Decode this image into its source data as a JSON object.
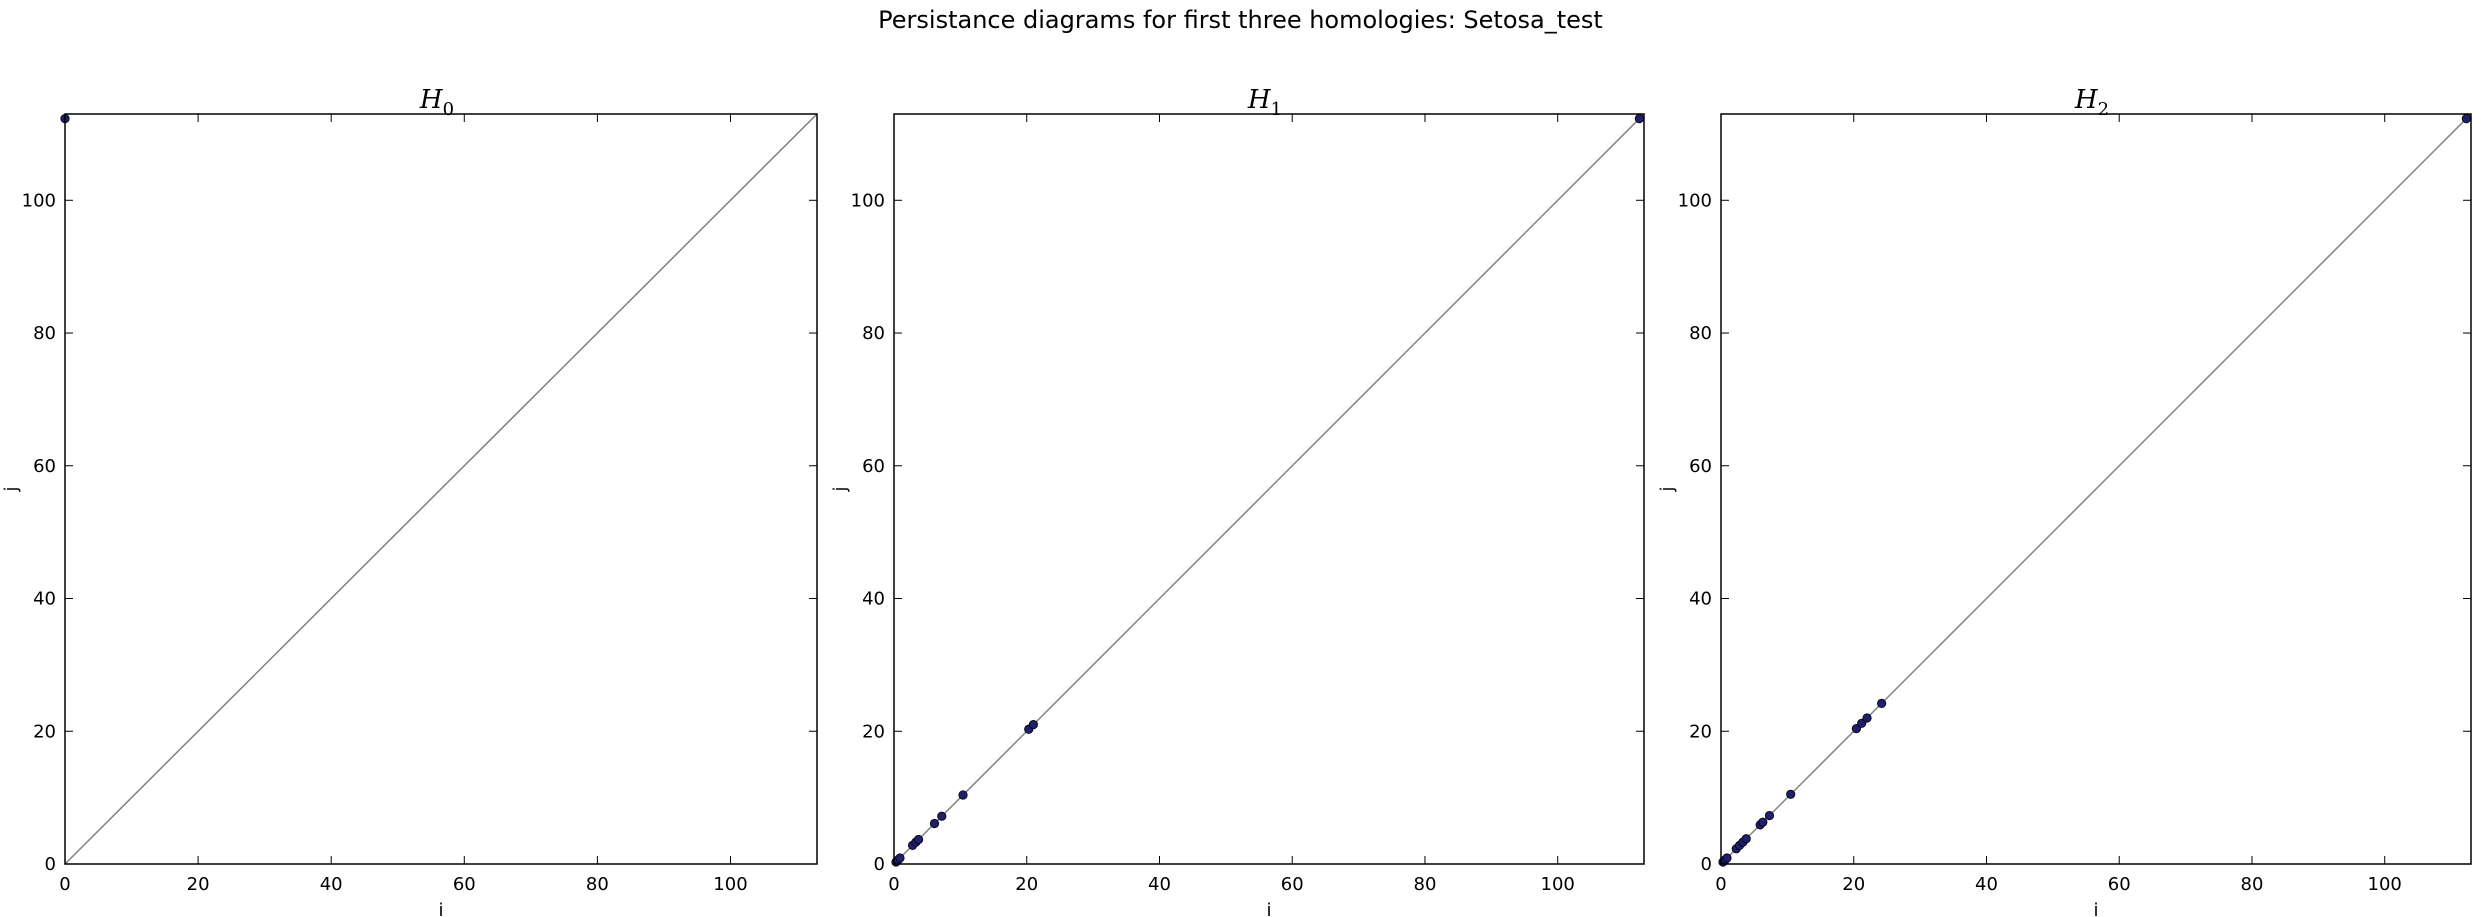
{
  "suptitle": "Persistance diagrams for first three homologies: Setosa_test",
  "chart_data": [
    {
      "type": "scatter",
      "title": "H",
      "title_subscript": "0",
      "xlabel": "i",
      "ylabel": "j",
      "xlim": [
        0,
        113
      ],
      "ylim": [
        0,
        113
      ],
      "xticks": [
        0,
        20,
        40,
        60,
        80,
        100
      ],
      "yticks": [
        0,
        20,
        40,
        60,
        80,
        100
      ],
      "diagonal": true,
      "grid": false,
      "marker_color": "#1f1f6e",
      "points": [
        {
          "x": 0,
          "y": 112.3
        }
      ]
    },
    {
      "type": "scatter",
      "title": "H",
      "title_subscript": "1",
      "xlabel": "i",
      "ylabel": "j",
      "xlim": [
        0,
        113
      ],
      "ylim": [
        0,
        113
      ],
      "xticks": [
        0,
        20,
        40,
        60,
        80,
        100
      ],
      "yticks": [
        0,
        20,
        40,
        60,
        80,
        100
      ],
      "diagonal": true,
      "grid": false,
      "marker_color": "#1f1f6e",
      "points": [
        {
          "x": 0.3,
          "y": 0.3
        },
        {
          "x": 0.6,
          "y": 0.6
        },
        {
          "x": 0.9,
          "y": 0.9
        },
        {
          "x": 2.8,
          "y": 2.8
        },
        {
          "x": 3.3,
          "y": 3.3
        },
        {
          "x": 3.7,
          "y": 3.7
        },
        {
          "x": 6.1,
          "y": 6.1
        },
        {
          "x": 7.2,
          "y": 7.2
        },
        {
          "x": 10.4,
          "y": 10.4
        },
        {
          "x": 20.3,
          "y": 20.3
        },
        {
          "x": 21.0,
          "y": 21.0
        },
        {
          "x": 112.3,
          "y": 112.3
        }
      ]
    },
    {
      "type": "scatter",
      "title": "H",
      "title_subscript": "2",
      "xlabel": "i",
      "ylabel": "j",
      "xlim": [
        0,
        113
      ],
      "ylim": [
        0,
        113
      ],
      "xticks": [
        0,
        20,
        40,
        60,
        80,
        100
      ],
      "yticks": [
        0,
        20,
        40,
        60,
        80,
        100
      ],
      "diagonal": true,
      "grid": false,
      "marker_color": "#1f1f6e",
      "points": [
        {
          "x": 0.3,
          "y": 0.3
        },
        {
          "x": 0.6,
          "y": 0.6
        },
        {
          "x": 0.9,
          "y": 0.9
        },
        {
          "x": 2.3,
          "y": 2.3
        },
        {
          "x": 2.8,
          "y": 2.8
        },
        {
          "x": 3.3,
          "y": 3.3
        },
        {
          "x": 3.8,
          "y": 3.8
        },
        {
          "x": 5.9,
          "y": 5.9
        },
        {
          "x": 6.3,
          "y": 6.3
        },
        {
          "x": 7.3,
          "y": 7.3
        },
        {
          "x": 10.5,
          "y": 10.5
        },
        {
          "x": 20.4,
          "y": 20.4
        },
        {
          "x": 21.2,
          "y": 21.2
        },
        {
          "x": 22.0,
          "y": 22.0
        },
        {
          "x": 24.2,
          "y": 24.2
        },
        {
          "x": 112.3,
          "y": 112.3
        }
      ]
    }
  ]
}
